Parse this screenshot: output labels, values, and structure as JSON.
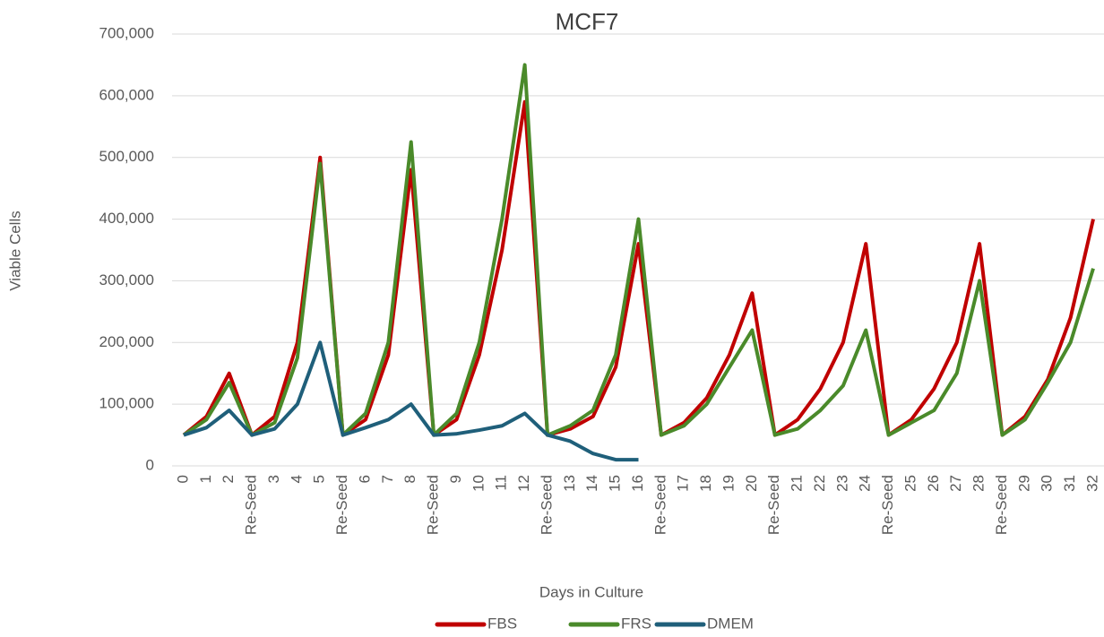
{
  "chart_data": {
    "type": "line",
    "title": "MCF7",
    "x_label": "Days in Culture",
    "y_label": "Viable Cells",
    "categories": [
      "0",
      "1",
      "2",
      "Re-Seed",
      "3",
      "4",
      "5",
      "Re-Seed",
      "6",
      "7",
      "8",
      "Re-Seed",
      "9",
      "10",
      "11",
      "12",
      "Re-Seed",
      "13",
      "14",
      "15",
      "16",
      "Re-Seed",
      "17",
      "18",
      "19",
      "20",
      "Re-Seed",
      "21",
      "22",
      "23",
      "24",
      "Re-Seed",
      "25",
      "26",
      "27",
      "28",
      "Re-Seed",
      "29",
      "30",
      "31",
      "32"
    ],
    "series": [
      {
        "name": "FBS",
        "color": "#c00000",
        "values": [
          50000,
          80000,
          150000,
          50000,
          80000,
          200000,
          500000,
          50000,
          75000,
          180000,
          480000,
          50000,
          75000,
          180000,
          350000,
          590000,
          50000,
          60000,
          80000,
          160000,
          360000,
          50000,
          70000,
          110000,
          180000,
          280000,
          50000,
          75000,
          125000,
          200000,
          360000,
          50000,
          75000,
          125000,
          200000,
          360000,
          50000,
          80000,
          140000,
          240000,
          400000
        ]
      },
      {
        "name": "FRS",
        "color": "#4a8a2a",
        "values": [
          50000,
          75000,
          135000,
          50000,
          70000,
          175000,
          490000,
          50000,
          85000,
          200000,
          525000,
          50000,
          85000,
          200000,
          400000,
          650000,
          50000,
          65000,
          90000,
          180000,
          400000,
          50000,
          65000,
          100000,
          160000,
          220000,
          50000,
          60000,
          90000,
          130000,
          220000,
          50000,
          70000,
          90000,
          150000,
          300000,
          50000,
          75000,
          135000,
          200000,
          320000
        ]
      },
      {
        "name": "DMEM",
        "color": "#1f5f7a",
        "values": [
          50000,
          62000,
          90000,
          50000,
          60000,
          100000,
          200000,
          50000,
          62000,
          75000,
          100000,
          50000,
          52000,
          58000,
          65000,
          85000,
          50000,
          40000,
          20000,
          10000,
          10000,
          null,
          null,
          null,
          null,
          null,
          null,
          null,
          null,
          null,
          null,
          null,
          null,
          null,
          null,
          null,
          null,
          null,
          null,
          null,
          null
        ]
      }
    ],
    "ylim": [
      0,
      700000
    ],
    "yticks": [
      0,
      {
        "value": 100000,
        "label": "100,000"
      },
      {
        "value": 200000,
        "label": "200,000"
      },
      {
        "value": 300000,
        "label": "300,000"
      },
      {
        "value": 400000,
        "label": "400,000"
      },
      {
        "value": 500000,
        "label": "500,000"
      },
      {
        "value": 600000,
        "label": "600,000"
      },
      {
        "value": 700000,
        "label": "700,000"
      }
    ],
    "grid": true,
    "legend": "bottom"
  }
}
